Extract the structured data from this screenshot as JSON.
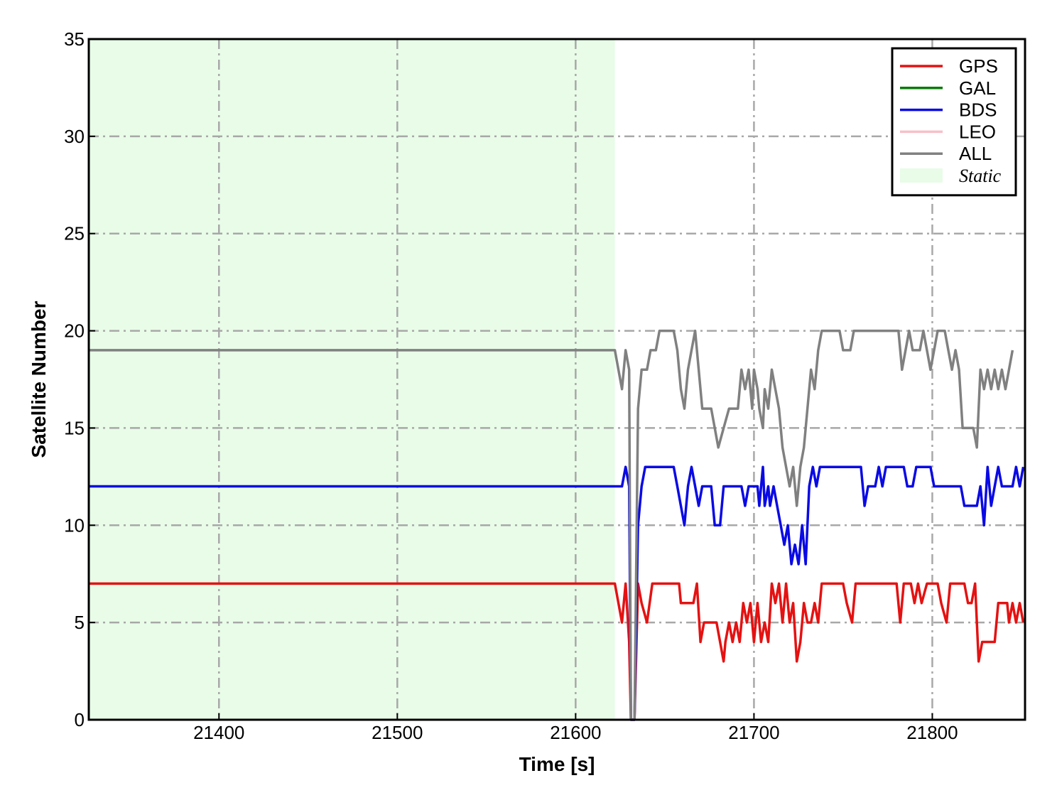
{
  "chart_data": {
    "type": "line",
    "xlabel": "Time [s]",
    "ylabel": "Satellite Number",
    "xlim": [
      21327,
      21852
    ],
    "ylim": [
      0,
      35
    ],
    "xticks": [
      21400,
      21500,
      21600,
      21700,
      21800
    ],
    "yticks": [
      0,
      5,
      10,
      15,
      20,
      25,
      30,
      35
    ],
    "grid": true,
    "grid_style": "dash-dot",
    "legend_position": "top-right",
    "shaded_regions": [
      {
        "name": "Static",
        "x_start": 21327,
        "x_end": 21622,
        "color": "#e8fce8"
      }
    ],
    "series": [
      {
        "name": "GPS",
        "color": "#e41212",
        "points": [
          [
            21327,
            7
          ],
          [
            21622,
            7
          ],
          [
            21624,
            6
          ],
          [
            21626,
            5
          ],
          [
            21628,
            7
          ],
          [
            21630,
            4
          ],
          [
            21631,
            0
          ],
          [
            21633,
            0
          ],
          [
            21635,
            7
          ],
          [
            21637,
            6
          ],
          [
            21640,
            5
          ],
          [
            21643,
            7
          ],
          [
            21658,
            7
          ],
          [
            21659,
            6
          ],
          [
            21666,
            6
          ],
          [
            21668,
            7
          ],
          [
            21670,
            4
          ],
          [
            21672,
            5
          ],
          [
            21679,
            5
          ],
          [
            21681,
            4
          ],
          [
            21683,
            3
          ],
          [
            21684,
            4
          ],
          [
            21686,
            5
          ],
          [
            21688,
            4
          ],
          [
            21690,
            5
          ],
          [
            21692,
            4
          ],
          [
            21694,
            6
          ],
          [
            21696,
            5
          ],
          [
            21698,
            6
          ],
          [
            21700,
            4
          ],
          [
            21702,
            6
          ],
          [
            21704,
            4
          ],
          [
            21706,
            5
          ],
          [
            21708,
            4
          ],
          [
            21710,
            7
          ],
          [
            21712,
            6
          ],
          [
            21714,
            7
          ],
          [
            21716,
            5
          ],
          [
            21718,
            7
          ],
          [
            21720,
            5
          ],
          [
            21722,
            6
          ],
          [
            21724,
            3
          ],
          [
            21726,
            4
          ],
          [
            21728,
            6
          ],
          [
            21730,
            5
          ],
          [
            21732,
            5
          ],
          [
            21734,
            6
          ],
          [
            21736,
            5
          ],
          [
            21738,
            7
          ],
          [
            21750,
            7
          ],
          [
            21752,
            6
          ],
          [
            21755,
            5
          ],
          [
            21757,
            7
          ],
          [
            21780,
            7
          ],
          [
            21782,
            5
          ],
          [
            21784,
            7
          ],
          [
            21788,
            7
          ],
          [
            21790,
            6
          ],
          [
            21792,
            7
          ],
          [
            21794,
            6
          ],
          [
            21797,
            7
          ],
          [
            21803,
            7
          ],
          [
            21805,
            6
          ],
          [
            21808,
            5
          ],
          [
            21810,
            7
          ],
          [
            21818,
            7
          ],
          [
            21820,
            6
          ],
          [
            21822,
            6
          ],
          [
            21824,
            7
          ],
          [
            21826,
            3
          ],
          [
            21828,
            4
          ],
          [
            21835,
            4
          ],
          [
            21837,
            6
          ],
          [
            21842,
            6
          ],
          [
            21843,
            5
          ],
          [
            21845,
            6
          ],
          [
            21847,
            5
          ],
          [
            21849,
            6
          ],
          [
            21851,
            5
          ]
        ]
      },
      {
        "name": "GAL",
        "color": "#0a7a0a",
        "points": []
      },
      {
        "name": "BDS",
        "color": "#0a0ae4",
        "points": [
          [
            21327,
            12
          ],
          [
            21626,
            12
          ],
          [
            21628,
            13
          ],
          [
            21630,
            12
          ],
          [
            21631,
            0
          ],
          [
            21633,
            0
          ],
          [
            21635,
            10
          ],
          [
            21637,
            12
          ],
          [
            21639,
            13
          ],
          [
            21655,
            13
          ],
          [
            21657,
            12
          ],
          [
            21659,
            11
          ],
          [
            21661,
            10
          ],
          [
            21663,
            12
          ],
          [
            21665,
            13
          ],
          [
            21667,
            12
          ],
          [
            21669,
            11
          ],
          [
            21671,
            12
          ],
          [
            21676,
            12
          ],
          [
            21678,
            10
          ],
          [
            21681,
            10
          ],
          [
            21683,
            12
          ],
          [
            21693,
            12
          ],
          [
            21695,
            11
          ],
          [
            21697,
            12
          ],
          [
            21702,
            12
          ],
          [
            21703,
            11
          ],
          [
            21705,
            13
          ],
          [
            21706,
            11
          ],
          [
            21708,
            12
          ],
          [
            21709,
            11
          ],
          [
            21711,
            12
          ],
          [
            21713,
            11
          ],
          [
            21715,
            10
          ],
          [
            21717,
            9
          ],
          [
            21719,
            10
          ],
          [
            21721,
            8
          ],
          [
            21723,
            9
          ],
          [
            21725,
            8
          ],
          [
            21727,
            10
          ],
          [
            21729,
            8
          ],
          [
            21731,
            12
          ],
          [
            21733,
            13
          ],
          [
            21735,
            12
          ],
          [
            21737,
            13
          ],
          [
            21760,
            13
          ],
          [
            21762,
            11
          ],
          [
            21764,
            12
          ],
          [
            21768,
            12
          ],
          [
            21770,
            13
          ],
          [
            21772,
            12
          ],
          [
            21774,
            13
          ],
          [
            21784,
            13
          ],
          [
            21786,
            12
          ],
          [
            21789,
            12
          ],
          [
            21791,
            13
          ],
          [
            21799,
            13
          ],
          [
            21801,
            12
          ],
          [
            21816,
            12
          ],
          [
            21818,
            11
          ],
          [
            21825,
            11
          ],
          [
            21827,
            12
          ],
          [
            21829,
            10
          ],
          [
            21831,
            13
          ],
          [
            21833,
            11
          ],
          [
            21835,
            12
          ],
          [
            21837,
            13
          ],
          [
            21839,
            12
          ],
          [
            21845,
            12
          ],
          [
            21847,
            13
          ],
          [
            21849,
            12
          ],
          [
            21851,
            13
          ]
        ]
      },
      {
        "name": "LEO",
        "color": "#f7c0c8",
        "points": []
      },
      {
        "name": "ALL",
        "color": "#808080",
        "points": [
          [
            21327,
            19
          ],
          [
            21622,
            19
          ],
          [
            21624,
            18
          ],
          [
            21626,
            17
          ],
          [
            21628,
            19
          ],
          [
            21630,
            18
          ],
          [
            21631,
            0
          ],
          [
            21633,
            0
          ],
          [
            21635,
            16
          ],
          [
            21637,
            18
          ],
          [
            21640,
            18
          ],
          [
            21642,
            19
          ],
          [
            21645,
            19
          ],
          [
            21647,
            20
          ],
          [
            21655,
            20
          ],
          [
            21657,
            19
          ],
          [
            21659,
            17
          ],
          [
            21661,
            16
          ],
          [
            21663,
            18
          ],
          [
            21665,
            19
          ],
          [
            21667,
            20
          ],
          [
            21669,
            18
          ],
          [
            21671,
            16
          ],
          [
            21676,
            16
          ],
          [
            21678,
            15
          ],
          [
            21680,
            14
          ],
          [
            21683,
            15
          ],
          [
            21686,
            16
          ],
          [
            21691,
            16
          ],
          [
            21693,
            18
          ],
          [
            21695,
            17
          ],
          [
            21697,
            18
          ],
          [
            21699,
            16
          ],
          [
            21700,
            18
          ],
          [
            21702,
            17
          ],
          [
            21703,
            16
          ],
          [
            21705,
            15
          ],
          [
            21706,
            17
          ],
          [
            21708,
            16
          ],
          [
            21710,
            18
          ],
          [
            21712,
            17
          ],
          [
            21714,
            16
          ],
          [
            21716,
            14
          ],
          [
            21718,
            13
          ],
          [
            21720,
            12
          ],
          [
            21722,
            13
          ],
          [
            21724,
            11
          ],
          [
            21726,
            13
          ],
          [
            21728,
            14
          ],
          [
            21730,
            16
          ],
          [
            21732,
            18
          ],
          [
            21734,
            17
          ],
          [
            21736,
            19
          ],
          [
            21738,
            20
          ],
          [
            21748,
            20
          ],
          [
            21750,
            19
          ],
          [
            21754,
            19
          ],
          [
            21756,
            20
          ],
          [
            21781,
            20
          ],
          [
            21783,
            18
          ],
          [
            21785,
            19
          ],
          [
            21787,
            20
          ],
          [
            21789,
            19
          ],
          [
            21793,
            19
          ],
          [
            21795,
            20
          ],
          [
            21797,
            19
          ],
          [
            21799,
            18
          ],
          [
            21801,
            19
          ],
          [
            21803,
            20
          ],
          [
            21807,
            20
          ],
          [
            21809,
            19
          ],
          [
            21811,
            18
          ],
          [
            21813,
            19
          ],
          [
            21815,
            18
          ],
          [
            21817,
            15
          ],
          [
            21823,
            15
          ],
          [
            21825,
            14
          ],
          [
            21827,
            18
          ],
          [
            21829,
            17
          ],
          [
            21831,
            18
          ],
          [
            21833,
            17
          ],
          [
            21835,
            18
          ],
          [
            21837,
            17
          ],
          [
            21839,
            18
          ],
          [
            21841,
            17
          ],
          [
            21843,
            18
          ],
          [
            21845,
            19
          ]
        ]
      }
    ],
    "legend": [
      {
        "label": "GPS",
        "kind": "line",
        "color": "#e41212"
      },
      {
        "label": "GAL",
        "kind": "line",
        "color": "#0a7a0a"
      },
      {
        "label": "BDS",
        "kind": "line",
        "color": "#0a0ae4"
      },
      {
        "label": "LEO",
        "kind": "line",
        "color": "#f7c0c8"
      },
      {
        "label": "ALL",
        "kind": "line",
        "color": "#808080"
      },
      {
        "label": "Static",
        "kind": "patch",
        "color": "#e8fce8",
        "italic": true
      }
    ]
  }
}
